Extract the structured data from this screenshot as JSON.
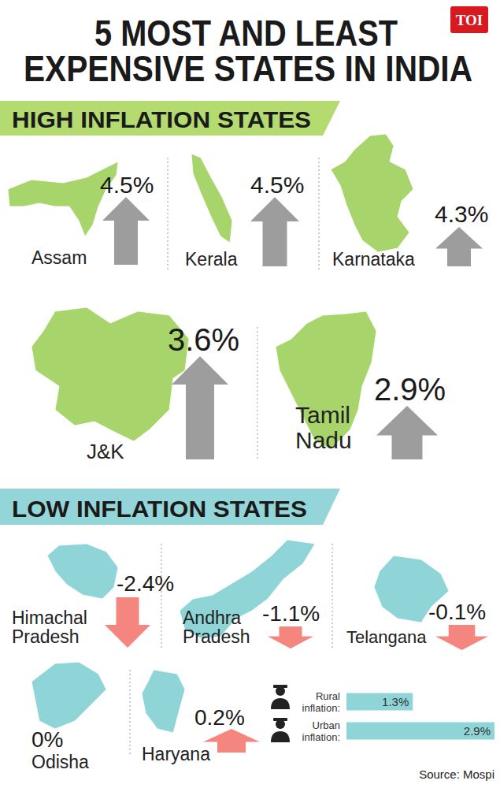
{
  "title": [
    "5 MOST AND LEAST",
    "EXPENSIVE STATES IN INDIA"
  ],
  "badge": "TOI",
  "sections": [
    {
      "heading": "HIGH INFLATION STATES",
      "states": [
        {
          "name": "Assam",
          "value": 4.5,
          "value_label": "4.5%"
        },
        {
          "name": "Kerala",
          "value": 4.5,
          "value_label": "4.5%"
        },
        {
          "name": "Karnataka",
          "value": 4.3,
          "value_label": "4.3%"
        },
        {
          "name": "J&K",
          "value": 3.6,
          "value_label": "3.6%"
        },
        {
          "name": "Tamil Nadu",
          "value": 2.9,
          "value_label": "2.9%"
        }
      ]
    },
    {
      "heading": "LOW INFLATION STATES",
      "states": [
        {
          "name": "Himachal Pradesh",
          "value": -2.4,
          "value_label": "-2.4%"
        },
        {
          "name": "Andhra Pradesh",
          "value": -1.1,
          "value_label": "-1.1%"
        },
        {
          "name": "Telangana",
          "value": -0.1,
          "value_label": "-0.1%"
        },
        {
          "name": "Odisha",
          "value": 0,
          "value_label": "0%"
        },
        {
          "name": "Haryana",
          "value": 0.2,
          "value_label": "0.2%"
        }
      ]
    }
  ],
  "chart_data": {
    "type": "bar",
    "orientation": "horizontal",
    "categories": [
      "Rural inflation:",
      "Urban inflation:"
    ],
    "values": [
      1.3,
      2.9
    ],
    "value_labels": [
      "1.3%",
      "2.9%"
    ],
    "color": "#8fd4d7",
    "data_labels": true,
    "tick_labels": "y",
    "grid": false,
    "xlim": [
      0,
      2.9
    ]
  },
  "source": "Source: Mospi"
}
